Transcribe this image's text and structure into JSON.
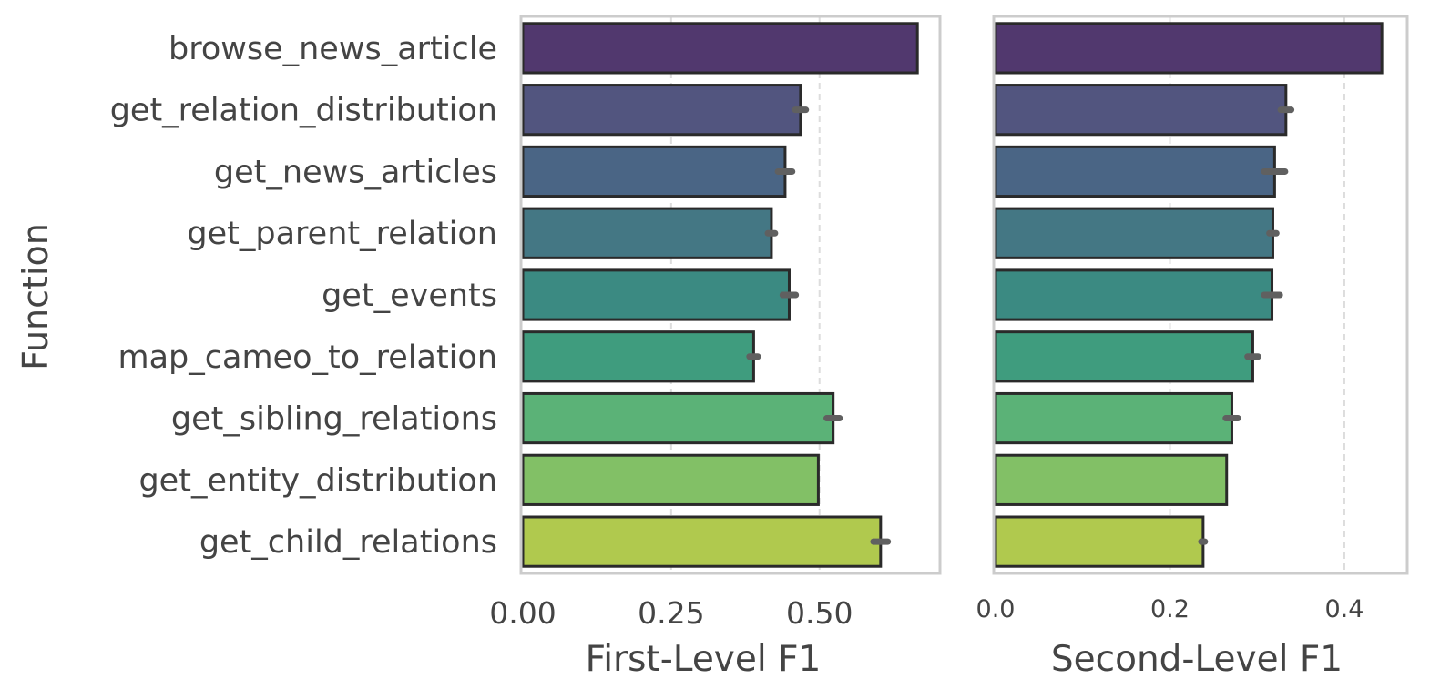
{
  "chart_data": {
    "ylabel": "Function",
    "categories": [
      "browse_news_article",
      "get_relation_distribution",
      "get_news_articles",
      "get_parent_relation",
      "get_events",
      "map_cameo_to_relation",
      "get_sibling_relations",
      "get_entity_distribution",
      "get_child_relations"
    ],
    "colors": [
      "#51386e",
      "#52557f",
      "#4a6585",
      "#447784",
      "#3b8a82",
      "#3f9c7e",
      "#5bb277",
      "#82c066",
      "#b0c94e"
    ],
    "panels": [
      {
        "type": "bar",
        "orientation": "horizontal",
        "xlabel": "First-Level F1",
        "xlim": [
          0,
          0.7
        ],
        "xticks": [
          0,
          0.25,
          0.5
        ],
        "xtick_labels": [
          "0.00",
          "0.25",
          "0.50"
        ],
        "grid": true,
        "values": [
          0.665,
          0.468,
          0.442,
          0.419,
          0.449,
          0.389,
          0.523,
          0.498,
          0.603
        ],
        "errors": [
          0,
          0.009,
          0.012,
          0.006,
          0.011,
          0.007,
          0.011,
          0,
          0.012
        ]
      },
      {
        "type": "bar",
        "orientation": "horizontal",
        "xlabel": "Second-Level F1",
        "xlim": [
          0,
          0.47
        ],
        "xticks": [
          0,
          0.2,
          0.4
        ],
        "xtick_labels": [
          "0.0",
          "0.2",
          "0.4"
        ],
        "grid": true,
        "values": [
          0.443,
          0.333,
          0.32,
          0.318,
          0.317,
          0.295,
          0.271,
          0.265,
          0.238
        ],
        "errors": [
          0,
          0.006,
          0.012,
          0.004,
          0.009,
          0.006,
          0.007,
          0,
          0.002
        ]
      }
    ]
  }
}
